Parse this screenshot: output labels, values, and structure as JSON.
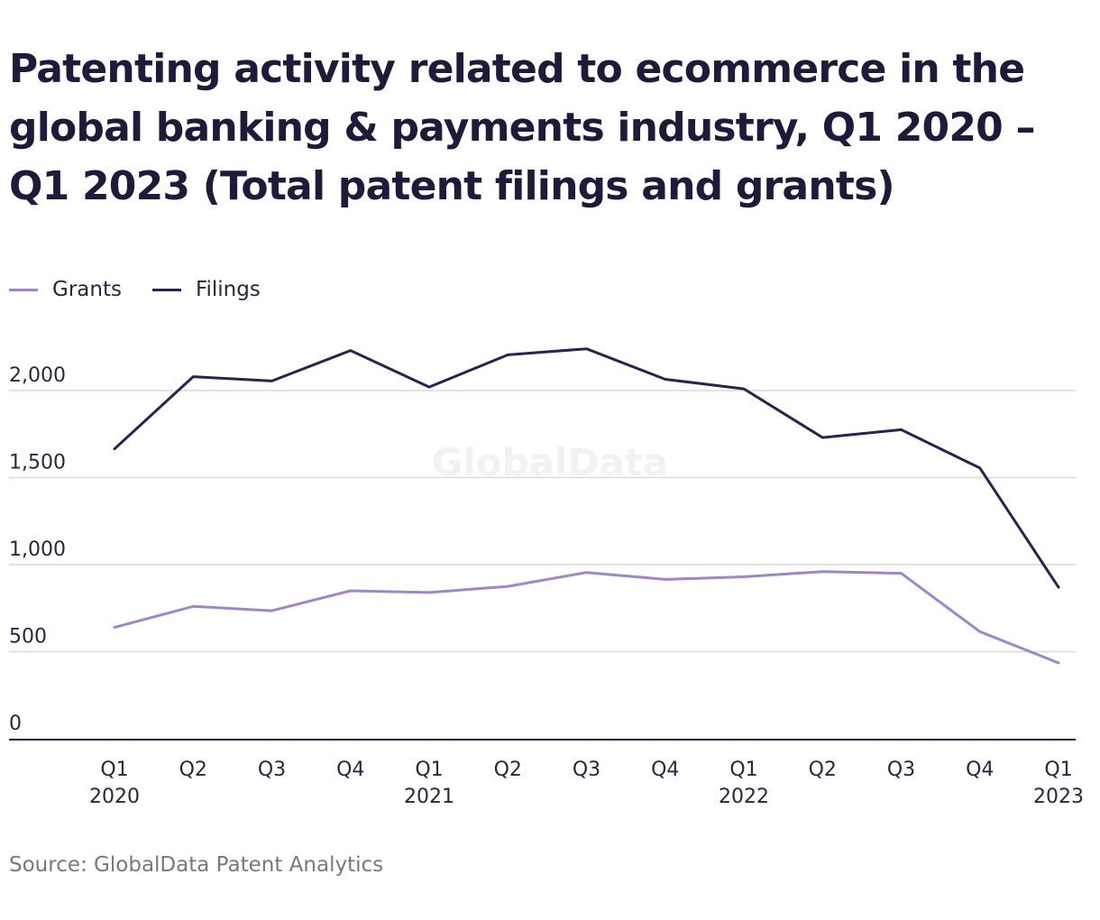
{
  "title": "Patenting activity related to ecommerce in the global banking & payments industry, Q1 2020 – Q1 2023 (Total patent filings and grants)",
  "source": "Source: GlobalData Patent Analytics",
  "watermark": "GlobalData",
  "colors": {
    "grants": "#a085c8",
    "filings": "#2d2150",
    "grid": "#d9d9d9",
    "axis": "#1e1a3a"
  },
  "chart_data": {
    "type": "line",
    "title": "Patenting activity related to ecommerce in the global banking & payments industry, Q1 2020 – Q1 2023 (Total patent filings and grants)",
    "xlabel": "",
    "ylabel": "",
    "categories": [
      {
        "q": "Q1",
        "year": "2020"
      },
      {
        "q": "Q2",
        "year": ""
      },
      {
        "q": "Q3",
        "year": ""
      },
      {
        "q": "Q4",
        "year": ""
      },
      {
        "q": "Q1",
        "year": "2021"
      },
      {
        "q": "Q2",
        "year": ""
      },
      {
        "q": "Q3",
        "year": ""
      },
      {
        "q": "Q4",
        "year": ""
      },
      {
        "q": "Q1",
        "year": "2022"
      },
      {
        "q": "Q2",
        "year": ""
      },
      {
        "q": "Q3",
        "year": ""
      },
      {
        "q": "Q4",
        "year": ""
      },
      {
        "q": "Q1",
        "year": "2023"
      }
    ],
    "series": [
      {
        "name": "Grants",
        "color": "#a085c8",
        "values": [
          640,
          760,
          735,
          850,
          840,
          875,
          955,
          915,
          930,
          960,
          950,
          615,
          435
        ]
      },
      {
        "name": "Filings",
        "color": "#2d2150",
        "values": [
          1665,
          2080,
          2055,
          2230,
          2020,
          2205,
          2240,
          2065,
          2010,
          1730,
          1775,
          1555,
          870
        ]
      }
    ],
    "yticks": [
      {
        "value": 0,
        "label": "0"
      },
      {
        "value": 500,
        "label": "500"
      },
      {
        "value": 1000,
        "label": "1,000"
      },
      {
        "value": 1500,
        "label": "1,500"
      },
      {
        "value": 2000,
        "label": "2,000"
      }
    ],
    "ylim": [
      0,
      2400
    ],
    "grid": true,
    "legend_position": "top-left"
  }
}
